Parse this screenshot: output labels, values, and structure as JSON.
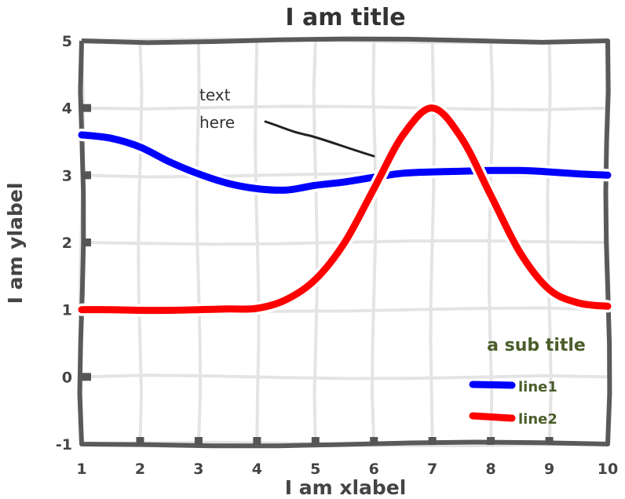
{
  "chart_data": {
    "type": "line",
    "title": "I am title",
    "xlabel": "I am xlabel",
    "ylabel": "I am ylabel",
    "xlim": [
      1,
      10
    ],
    "ylim": [
      -1,
      5
    ],
    "xticks": [
      1,
      2,
      3,
      4,
      5,
      6,
      7,
      8,
      9,
      10
    ],
    "yticks": [
      -1,
      0,
      1,
      2,
      3,
      4,
      5
    ],
    "grid": true,
    "legend": {
      "title": "a sub title",
      "placement": "lower-right"
    },
    "annotation": {
      "lines": [
        "text",
        "here"
      ],
      "points_to": [
        6,
        3.3
      ]
    },
    "series": [
      {
        "name": "line1",
        "color": "#0000ff",
        "x": [
          1,
          1.5,
          2,
          2.5,
          3,
          3.5,
          4,
          4.5,
          5,
          5.5,
          6,
          6.5,
          7,
          7.5,
          8,
          8.5,
          9,
          9.5,
          10
        ],
        "y": [
          3.6,
          3.55,
          3.42,
          3.2,
          3.02,
          2.88,
          2.8,
          2.78,
          2.85,
          2.9,
          2.97,
          3.03,
          3.05,
          3.06,
          3.07,
          3.07,
          3.05,
          3.02,
          3.0
        ]
      },
      {
        "name": "line2",
        "color": "#ff0000",
        "x": [
          1,
          1.5,
          2,
          2.5,
          3,
          3.5,
          4,
          4.5,
          5,
          5.5,
          6,
          6.5,
          7,
          7.5,
          8,
          8.5,
          9,
          9.5,
          10
        ],
        "y": [
          1.0,
          1.0,
          0.99,
          0.99,
          1.0,
          1.01,
          1.02,
          1.15,
          1.45,
          2.0,
          2.8,
          3.6,
          4.0,
          3.55,
          2.7,
          1.85,
          1.3,
          1.1,
          1.05
        ]
      }
    ]
  }
}
